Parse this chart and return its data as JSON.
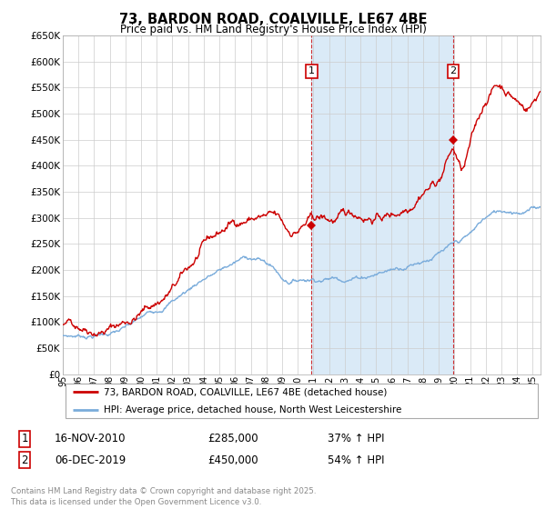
{
  "title": "73, BARDON ROAD, COALVILLE, LE67 4BE",
  "subtitle": "Price paid vs. HM Land Registry's House Price Index (HPI)",
  "ylim": [
    0,
    650000
  ],
  "yticks": [
    0,
    50000,
    100000,
    150000,
    200000,
    250000,
    300000,
    350000,
    400000,
    450000,
    500000,
    550000,
    600000,
    650000
  ],
  "xlim_start": 1995.0,
  "xlim_end": 2025.5,
  "red_line_color": "#cc0000",
  "blue_line_color": "#7aacdb",
  "shade_color": "#daeaf7",
  "sale1_x": 2010.88,
  "sale1_y": 285000,
  "sale1_label": "1",
  "sale1_date": "16-NOV-2010",
  "sale1_price": "£285,000",
  "sale1_hpi": "37% ↑ HPI",
  "sale2_x": 2019.92,
  "sale2_y": 450000,
  "sale2_label": "2",
  "sale2_date": "06-DEC-2019",
  "sale2_price": "£450,000",
  "sale2_hpi": "54% ↑ HPI",
  "legend_line1": "73, BARDON ROAD, COALVILLE, LE67 4BE (detached house)",
  "legend_line2": "HPI: Average price, detached house, North West Leicestershire",
  "footer": "Contains HM Land Registry data © Crown copyright and database right 2025.\nThis data is licensed under the Open Government Licence v3.0.",
  "background_color": "#ffffff",
  "plot_bg_color": "#ffffff",
  "grid_color": "#cccccc",
  "shade_start": 2010.88,
  "shade_end": 2019.92
}
